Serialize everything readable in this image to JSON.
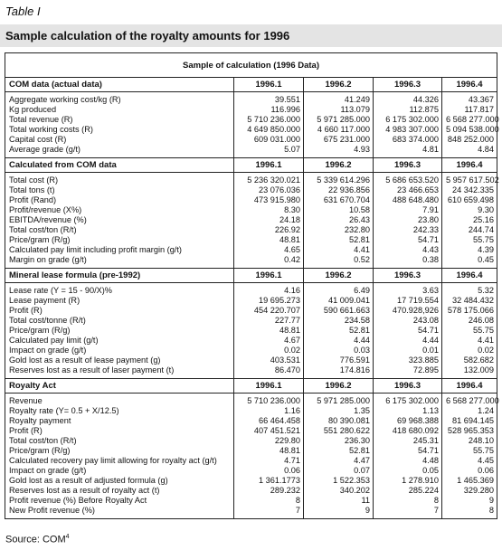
{
  "header": {
    "label": "Table I",
    "title": "Sample calculation of the royalty amounts for 1996"
  },
  "table": {
    "caption": "Sample of calculation (1996 Data)",
    "sections": [
      {
        "heading": "COM data (actual data)",
        "columns": [
          "1996.1",
          "1996.2",
          "1996.3",
          "1996.4"
        ],
        "rows": [
          [
            "Aggregate working cost/kg (R)",
            "39.551",
            "41.249",
            "44.326",
            "43.367"
          ],
          [
            "Kg produced",
            "116.996",
            "113.079",
            "112.875",
            "117.817"
          ],
          [
            "Total revenue (R)",
            "5 710 236.000",
            "5 971 285.000",
            "6 175 302.000",
            "6 568 277.000"
          ],
          [
            "Total working costs (R)",
            "4 649 850.000",
            "4 660 117.000",
            "4 983 307.000",
            "5 094 538.000"
          ],
          [
            "Capital cost (R)",
            "609 031.000",
            "675 231.000",
            "683 374.000",
            "848 252.000"
          ],
          [
            "Average grade (g/t)",
            "5.07",
            "4.93",
            "4.81",
            "4.84"
          ]
        ]
      },
      {
        "heading": "Calculated from COM data",
        "columns": [
          "1996.1",
          "1996.2",
          "1996.3",
          "1996.4"
        ],
        "rows": [
          [
            "Total cost (R)",
            "5 236 320.021",
            "5 339 614.296",
            "5 686 653.520",
            "5 957 617.502"
          ],
          [
            "Total tons (t)",
            "23 076.036",
            "22 936.856",
            "23 466.653",
            "24 342.335"
          ],
          [
            "Profit (Rand)",
            "473 915.980",
            "631 670.704",
            "488 648.480",
            "610 659.498"
          ],
          [
            "Profit/revenue (X%)",
            "8.30",
            "10.58",
            "7.91",
            "9.30"
          ],
          [
            "EBITDA/revenue (%)",
            "24.18",
            "26.43",
            "23.80",
            "25.16"
          ],
          [
            "Total cost/ton (R/t)",
            "226.92",
            "232.80",
            "242.33",
            "244.74"
          ],
          [
            "Price/gram (R/g)",
            "48.81",
            "52.81",
            "54.71",
            "55.75"
          ],
          [
            "Calculated pay limit including profit margin (g/t)",
            "4.65",
            "4.41",
            "4.43",
            "4.39"
          ],
          [
            "Margin on grade (g/t)",
            "0.42",
            "0.52",
            "0.38",
            "0.45"
          ]
        ]
      },
      {
        "heading": "Mineral lease formula (pre-1992)",
        "columns": [
          "1996.1",
          "1996.2",
          "1996.3",
          "1996.4"
        ],
        "rows": [
          [
            "Lease rate (Y = 15 - 90/X)%",
            "4.16",
            "6.49",
            "3.63",
            "5.32"
          ],
          [
            "Lease payment (R)",
            "19 695.273",
            "41 009.041",
            "17 719.554",
            "32 484.432"
          ],
          [
            "Profit (R)",
            "454 220.707",
            "590 661.663",
            "470.928,926",
            "578 175.066"
          ],
          [
            "Total cost/tonne (R/t)",
            "227.77",
            "234.58",
            "243.08",
            "246.08"
          ],
          [
            "Price/gram (R/g)",
            "48.81",
            "52.81",
            "54.71",
            "55.75"
          ],
          [
            "Calculated pay limit (g/t)",
            "4.67",
            "4.44",
            "4.44",
            "4.41"
          ],
          [
            "Impact on grade (g/t)",
            "0.02",
            "0.03",
            "0.01",
            "0.02"
          ],
          [
            "Gold lost as a result of lease payment (g)",
            "403.531",
            "776.591",
            "323.885",
            "582.682"
          ],
          [
            "Reserves lost as a result of laser payment (t)",
            "86.470",
            "174.816",
            "72.895",
            "132.009"
          ]
        ]
      },
      {
        "heading": "Royalty Act",
        "columns": [
          "1996.1",
          "1996.2",
          "1996.3",
          "1996.4"
        ],
        "rows": [
          [
            "Revenue",
            "5 710 236.000",
            "5 971 285.000",
            "6 175 302.000",
            "6 568 277.000"
          ],
          [
            "Royalty rate (Y= 0.5 + X/12.5)",
            "1.16",
            "1.35",
            "1.13",
            "1.24"
          ],
          [
            "Royalty payment",
            "66 464.458",
            "80 390.081",
            "69 968.388",
            "81 694.145"
          ],
          [
            "Profit (R)",
            "407 451.521",
            "551 280.622",
            "418 680.092",
            "528 965.353"
          ],
          [
            "Total cost/ton (R/t)",
            "229.80",
            "236.30",
            "245.31",
            "248.10"
          ],
          [
            "Price/gram (R/g)",
            "48.81",
            "52.81",
            "54.71",
            "55.75"
          ],
          [
            "Calculated recovery pay limit allowing for royalty act (g/t)",
            "4.71",
            "4.47",
            "4.48",
            "4.45"
          ],
          [
            "Impact on grade (g/t)",
            "0.06",
            "0.07",
            "0.05",
            "0.06"
          ],
          [
            "Gold lost as a result of adjusted formula (g)",
            "1 361.1773",
            "1 522.353",
            "1 278.910",
            "1 465.369"
          ],
          [
            "Reserves lost as a result of royalty act (t)",
            "289.232",
            "340.202",
            "285.224",
            "329.280"
          ],
          [
            "Profit revenue (%) Before Royalty Act",
            "8",
            "11",
            "8",
            "9"
          ],
          [
            "New Profit revenue (%)",
            "7",
            "9",
            "7",
            "8"
          ]
        ]
      }
    ]
  },
  "footer": {
    "source": "Source: COM",
    "reference": "4"
  }
}
